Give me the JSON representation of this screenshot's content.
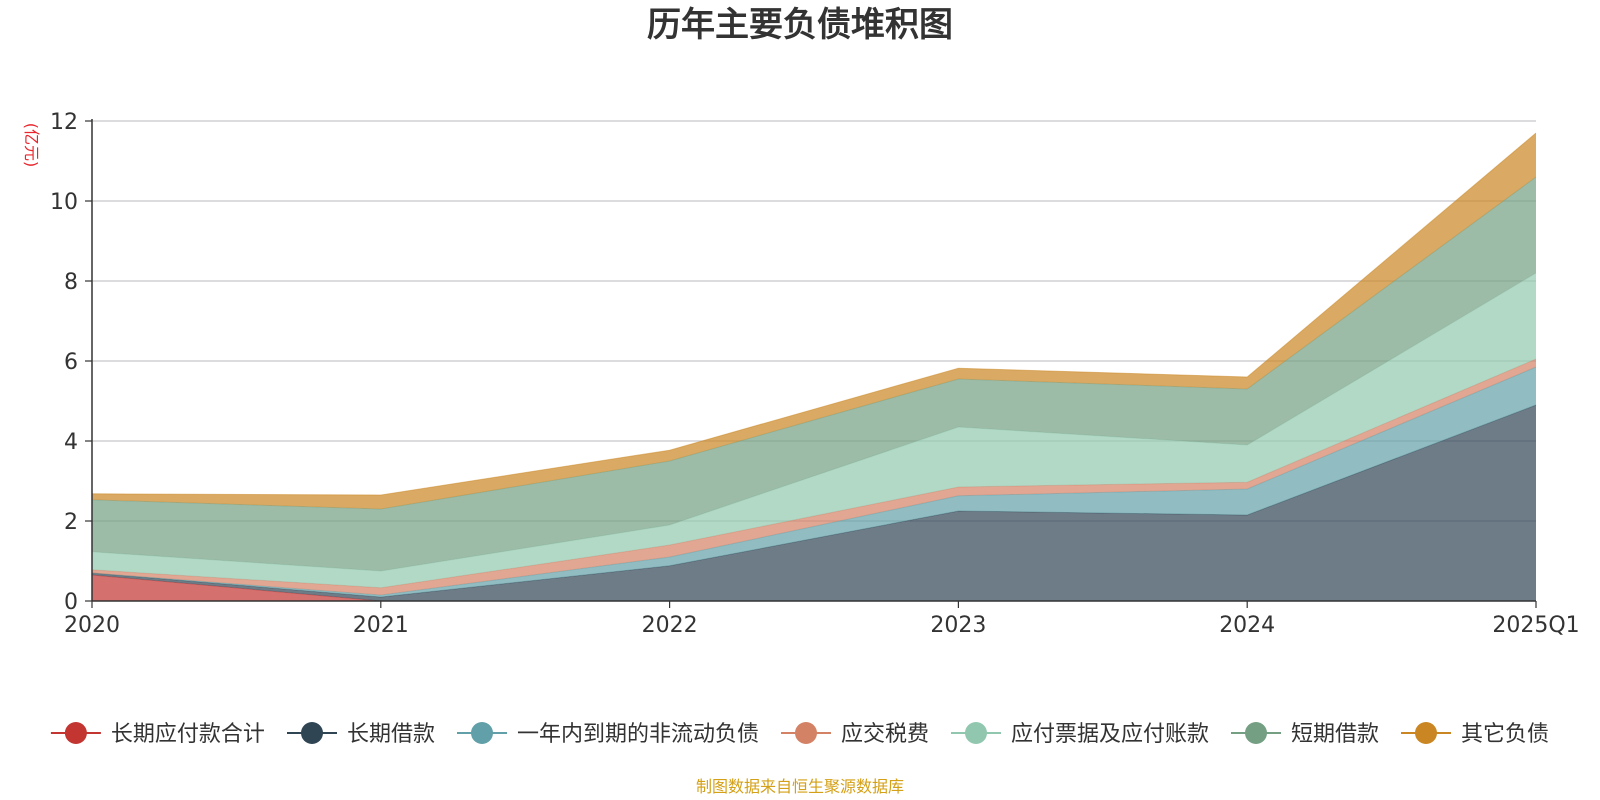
{
  "colors": {
    "title": "#333333",
    "unit": "#e8262d",
    "source": "#d4a017",
    "grid": "#c8c8cc",
    "axis": "#333333"
  },
  "chart_data": {
    "type": "area",
    "stacked": true,
    "title": "历年主要负债堆积图",
    "ylabel": "(亿元)",
    "xlabel": "",
    "categories": [
      "2020",
      "2021",
      "2022",
      "2023",
      "2024",
      "2025Q1"
    ],
    "ylim": [
      0,
      12
    ],
    "yticks": [
      0,
      2,
      4,
      6,
      8,
      10,
      12
    ],
    "grid": true,
    "legend_position": "bottom",
    "source_note": "制图数据来自恒生聚源数据库",
    "series": [
      {
        "name": "长期应付款合计",
        "color": "#c23531",
        "values": [
          0.65,
          0.0,
          0.0,
          0.0,
          0.0,
          0.0
        ]
      },
      {
        "name": "长期借款",
        "color": "#2f4554",
        "values": [
          0.05,
          0.1,
          0.88,
          2.25,
          2.15,
          4.9
        ]
      },
      {
        "name": "一年内到期的非流动负债",
        "color": "#61a0a8",
        "values": [
          0.0,
          0.05,
          0.22,
          0.38,
          0.65,
          0.95
        ]
      },
      {
        "name": "应交税费",
        "color": "#d48265",
        "values": [
          0.08,
          0.18,
          0.3,
          0.22,
          0.17,
          0.2
        ]
      },
      {
        "name": "应付票据及应付账款",
        "color": "#91c7ae",
        "values": [
          0.45,
          0.42,
          0.5,
          1.5,
          0.93,
          2.15
        ]
      },
      {
        "name": "短期借款",
        "color": "#749f83",
        "values": [
          1.3,
          1.55,
          1.6,
          1.2,
          1.4,
          2.4
        ]
      },
      {
        "name": "其它负债",
        "color": "#ca8622",
        "values": [
          0.15,
          0.35,
          0.27,
          0.27,
          0.3,
          1.1
        ]
      }
    ]
  }
}
